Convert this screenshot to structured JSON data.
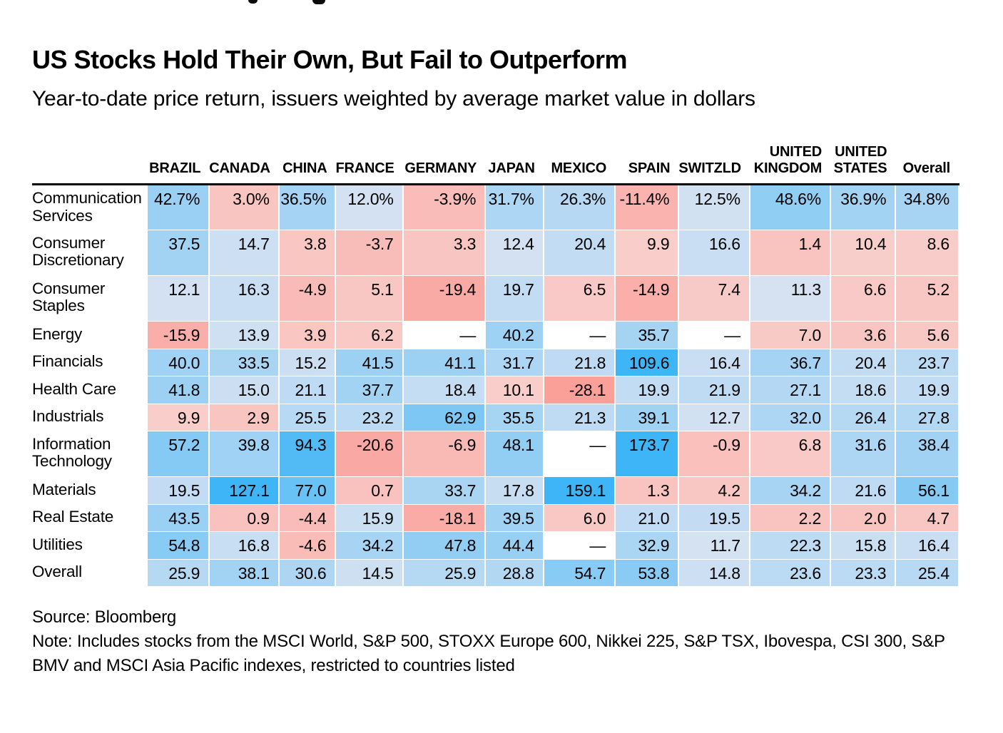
{
  "page": {
    "title": "US Stocks Hold Their Own, But Fail to Outperform",
    "subtitle": "Year-to-date price return, issuers weighted by average market value in dollars",
    "source": "Source: Bloomberg",
    "note": "Note: Includes stocks from the MSCI World, S&P 500, STOXX Europe 600, Nikkei 225, S&P TSX, Ibovespa, CSI 300, S&P BMV and MSCI Asia Pacific indexes, restricted to countries listed"
  },
  "chart_data": {
    "type": "heatmap",
    "columns": [
      "BRAZIL",
      "CANADA",
      "CHINA",
      "FRANCE",
      "GERMANY",
      "JAPAN",
      "MEXICO",
      "SPAIN",
      "SWITZLD",
      "UNITED KINGDOM",
      "UNITED STATES",
      "Overall"
    ],
    "rows": [
      {
        "label": "Communication Services",
        "values": [
          "42.7%",
          "3.0%",
          "36.5%",
          "12.0%",
          "-3.9%",
          "31.7%",
          "26.3%",
          "-11.4%",
          "12.5%",
          "48.6%",
          "36.9%",
          "34.8%"
        ]
      },
      {
        "label": "Consumer Discretionary",
        "values": [
          "37.5",
          "14.7",
          "3.8",
          "-3.7",
          "3.3",
          "12.4",
          "20.4",
          "9.9",
          "16.6",
          "1.4",
          "10.4",
          "8.6"
        ]
      },
      {
        "label": "Consumer Staples",
        "values": [
          "12.1",
          "16.3",
          "-4.9",
          "5.1",
          "-19.4",
          "19.7",
          "6.5",
          "-14.9",
          "7.4",
          "11.3",
          "6.6",
          "5.2"
        ]
      },
      {
        "label": "Energy",
        "values": [
          "-15.9",
          "13.9",
          "3.9",
          "6.2",
          "—",
          "40.2",
          "—",
          "35.7",
          "—",
          "7.0",
          "3.6",
          "5.6"
        ]
      },
      {
        "label": "Financials",
        "values": [
          "40.0",
          "33.5",
          "15.2",
          "41.5",
          "41.1",
          "31.7",
          "21.8",
          "109.6",
          "16.4",
          "36.7",
          "20.4",
          "23.7"
        ]
      },
      {
        "label": "Health Care",
        "values": [
          "41.8",
          "15.0",
          "21.1",
          "37.7",
          "18.4",
          "10.1",
          "-28.1",
          "19.9",
          "21.9",
          "27.1",
          "18.6",
          "19.9"
        ]
      },
      {
        "label": "Industrials",
        "values": [
          "9.9",
          "2.9",
          "25.5",
          "23.2",
          "62.9",
          "35.5",
          "21.3",
          "39.1",
          "12.7",
          "32.0",
          "26.4",
          "27.8"
        ]
      },
      {
        "label": "Information Technology",
        "values": [
          "57.2",
          "39.8",
          "94.3",
          "-20.6",
          "-6.9",
          "48.1",
          "—",
          "173.7",
          "-0.9",
          "6.8",
          "31.6",
          "38.4"
        ]
      },
      {
        "label": "Materials",
        "values": [
          "19.5",
          "127.1",
          "77.0",
          "0.7",
          "33.7",
          "17.8",
          "159.1",
          "1.3",
          "4.2",
          "34.2",
          "21.6",
          "56.1"
        ]
      },
      {
        "label": "Real Estate",
        "values": [
          "43.5",
          "0.9",
          "-4.4",
          "15.9",
          "-18.1",
          "39.5",
          "6.0",
          "21.0",
          "19.5",
          "2.2",
          "2.0",
          "4.7"
        ]
      },
      {
        "label": "Utilities",
        "values": [
          "54.8",
          "16.8",
          "-4.6",
          "34.2",
          "47.8",
          "44.4",
          "—",
          "32.9",
          "11.7",
          "22.3",
          "15.8",
          "16.4"
        ]
      },
      {
        "label": "Overall",
        "values": [
          "25.9",
          "38.1",
          "30.6",
          "14.5",
          "25.9",
          "28.8",
          "54.7",
          "53.8",
          "14.8",
          "23.6",
          "23.3",
          "25.4"
        ]
      }
    ],
    "missing_marker": "—",
    "colors": {
      "blue_min": "#d9e3f2",
      "blue_max": "#3eb5f6",
      "pink_min": "#f8cecb",
      "pink_max": "#fb9f99",
      "missing": "#ffffff",
      "midpoint": 10.6,
      "blue_range": 99.4,
      "blue_exponent": 0.8,
      "pink_range": 38.7,
      "text": "#000000",
      "header_rule": "#000000"
    },
    "legend_position": "none",
    "grid": "white-gaps"
  }
}
